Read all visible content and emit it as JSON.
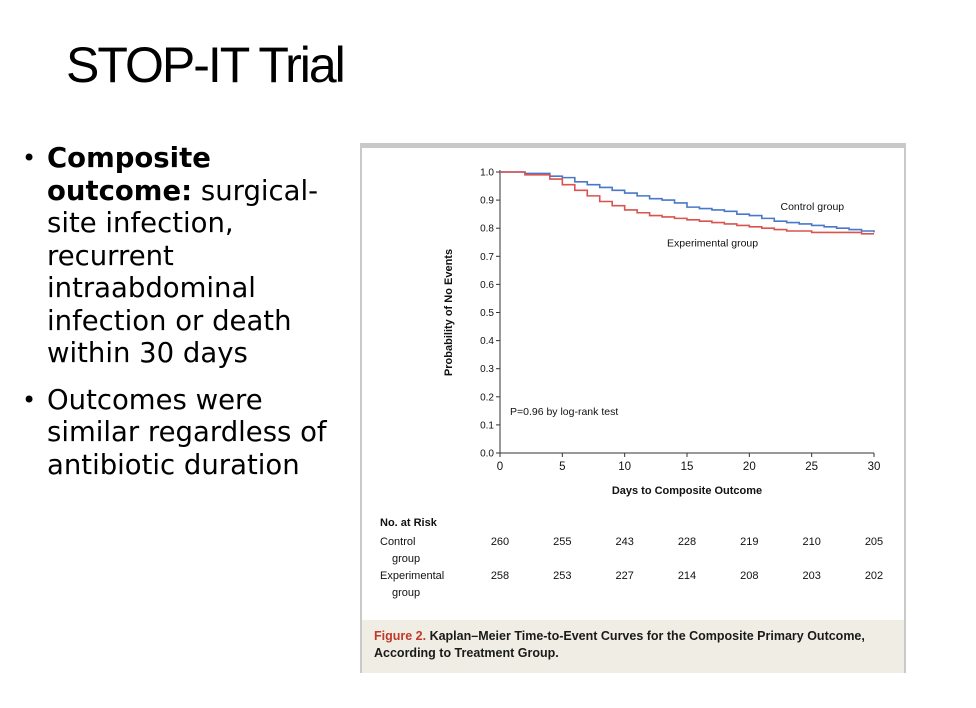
{
  "slide": {
    "title": "STOP-IT Trial",
    "bullets": [
      {
        "bold": "Composite outcome:",
        "text": " surgical-site infection, recurrent intraabdominal infection or death within 30 days"
      },
      {
        "bold": "",
        "text": "Outcomes were similar regardless of antibiotic duration"
      }
    ]
  },
  "figure": {
    "caption_label": "Figure 2.",
    "caption_text": " Kaplan–Meier Time-to-Event Curves for the Composite Primary Outcome, According to Treatment Group."
  },
  "chart_data": {
    "type": "line",
    "title": "",
    "xlabel": "Days to Composite Outcome",
    "ylabel": "Probability of No Events",
    "xlim": [
      0,
      30
    ],
    "ylim": [
      0,
      1.0
    ],
    "x_ticks": [
      "0",
      "5",
      "10",
      "15",
      "20",
      "25",
      "30"
    ],
    "y_ticks": [
      "0.0",
      "0.1",
      "0.2",
      "0.3",
      "0.4",
      "0.5",
      "0.6",
      "0.7",
      "0.8",
      "0.9",
      "1.0"
    ],
    "grid": false,
    "annotation": "P=0.96 by log-rank test",
    "series": [
      {
        "name": "Control group",
        "color": "#4a78c8",
        "x": [
          0,
          2,
          4,
          5,
          6,
          7,
          8,
          9,
          10,
          11,
          12,
          13,
          14,
          15,
          16,
          17,
          18,
          19,
          20,
          21,
          22,
          23,
          24,
          25,
          26,
          27,
          28,
          29,
          30
        ],
        "y": [
          1.0,
          0.995,
          0.985,
          0.98,
          0.965,
          0.955,
          0.945,
          0.935,
          0.925,
          0.915,
          0.905,
          0.9,
          0.89,
          0.875,
          0.87,
          0.865,
          0.86,
          0.85,
          0.845,
          0.835,
          0.825,
          0.82,
          0.815,
          0.81,
          0.805,
          0.8,
          0.795,
          0.79,
          0.785
        ]
      },
      {
        "name": "Experimental group",
        "color": "#d9534f",
        "x": [
          0,
          2,
          4,
          5,
          6,
          7,
          8,
          9,
          10,
          11,
          12,
          13,
          14,
          15,
          16,
          17,
          18,
          19,
          20,
          21,
          22,
          23,
          24,
          25,
          26,
          27,
          28,
          29,
          30
        ],
        "y": [
          1.0,
          0.99,
          0.975,
          0.955,
          0.935,
          0.915,
          0.895,
          0.88,
          0.865,
          0.855,
          0.845,
          0.84,
          0.835,
          0.83,
          0.825,
          0.82,
          0.815,
          0.81,
          0.805,
          0.8,
          0.795,
          0.79,
          0.79,
          0.785,
          0.785,
          0.785,
          0.785,
          0.78,
          0.78
        ]
      }
    ],
    "at_risk": {
      "header": "No. at Risk",
      "rows": [
        {
          "label_line1": "Control",
          "label_line2": "group",
          "values": [
            "260",
            "255",
            "243",
            "228",
            "219",
            "210",
            "205"
          ]
        },
        {
          "label_line1": "Experimental",
          "label_line2": "group",
          "values": [
            "258",
            "253",
            "227",
            "214",
            "208",
            "203",
            "202"
          ]
        }
      ]
    }
  }
}
